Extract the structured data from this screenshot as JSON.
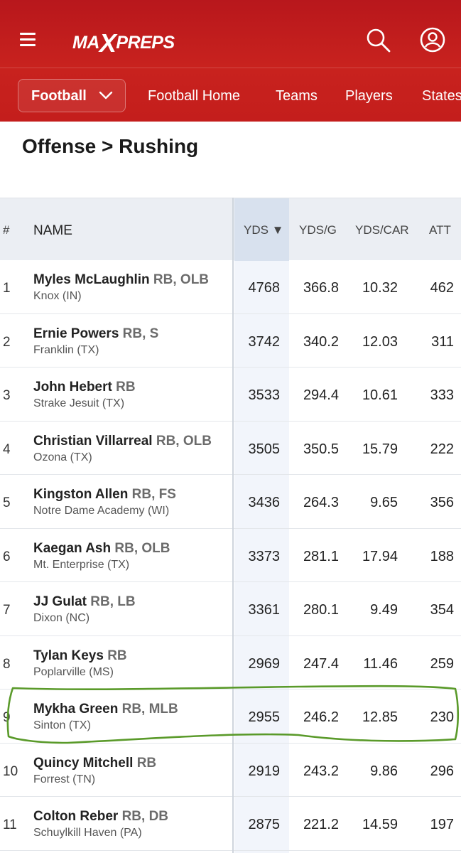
{
  "header": {
    "logo_text": "MAXPREPS",
    "logo_part1": "MA",
    "logo_part2": "X",
    "logo_part3": "PREPS",
    "sport_select": "Football",
    "nav": [
      "Football Home",
      "Teams",
      "Players",
      "States"
    ]
  },
  "page": {
    "title": "Offense > Rushing"
  },
  "table": {
    "columns": {
      "rank": "#",
      "name": "NAME",
      "yds": "YDS ▼",
      "ydsg": "YDS/G",
      "ydscar": "YDS/CAR",
      "att": "ATT"
    },
    "sorted_column": "YDS",
    "rows": [
      {
        "rank": "1",
        "name": "Myles McLaughlin",
        "pos": "RB, OLB",
        "school": "Knox (IN)",
        "yds": "4768",
        "ydsg": "366.8",
        "ydscar": "10.32",
        "att": "462"
      },
      {
        "rank": "2",
        "name": "Ernie Powers",
        "pos": "RB, S",
        "school": "Franklin (TX)",
        "yds": "3742",
        "ydsg": "340.2",
        "ydscar": "12.03",
        "att": "311"
      },
      {
        "rank": "3",
        "name": "John Hebert",
        "pos": "RB",
        "school": "Strake Jesuit (TX)",
        "yds": "3533",
        "ydsg": "294.4",
        "ydscar": "10.61",
        "att": "333"
      },
      {
        "rank": "4",
        "name": "Christian Villarreal",
        "pos": "RB, OLB",
        "school": "Ozona (TX)",
        "yds": "3505",
        "ydsg": "350.5",
        "ydscar": "15.79",
        "att": "222"
      },
      {
        "rank": "5",
        "name": "Kingston Allen",
        "pos": "RB, FS",
        "school": "Notre Dame Academy (WI)",
        "yds": "3436",
        "ydsg": "264.3",
        "ydscar": "9.65",
        "att": "356"
      },
      {
        "rank": "6",
        "name": "Kaegan Ash",
        "pos": "RB, OLB",
        "school": "Mt. Enterprise (TX)",
        "yds": "3373",
        "ydsg": "281.1",
        "ydscar": "17.94",
        "att": "188"
      },
      {
        "rank": "7",
        "name": "JJ Gulat",
        "pos": "RB, LB",
        "school": "Dixon (NC)",
        "yds": "3361",
        "ydsg": "280.1",
        "ydscar": "9.49",
        "att": "354"
      },
      {
        "rank": "8",
        "name": "Tylan Keys",
        "pos": "RB",
        "school": "Poplarville (MS)",
        "yds": "2969",
        "ydsg": "247.4",
        "ydscar": "11.46",
        "att": "259"
      },
      {
        "rank": "9",
        "name": "Mykha Green",
        "pos": "RB, MLB",
        "school": "Sinton (TX)",
        "yds": "2955",
        "ydsg": "246.2",
        "ydscar": "12.85",
        "att": "230"
      },
      {
        "rank": "10",
        "name": "Quincy Mitchell",
        "pos": "RB",
        "school": "Forrest (TN)",
        "yds": "2919",
        "ydsg": "243.2",
        "ydscar": "9.86",
        "att": "296"
      },
      {
        "rank": "11",
        "name": "Colton Reber",
        "pos": "RB, DB",
        "school": "Schuylkill Haven (PA)",
        "yds": "2875",
        "ydsg": "221.2",
        "ydscar": "14.59",
        "att": "197"
      }
    ]
  },
  "annotation": {
    "color": "#5a9a2a",
    "highlighted_row_rank": "9"
  },
  "colors": {
    "brand_red": "#c41e1c",
    "header_bg": "#ebeef3",
    "sorted_col_bg": "#f2f5fb"
  }
}
